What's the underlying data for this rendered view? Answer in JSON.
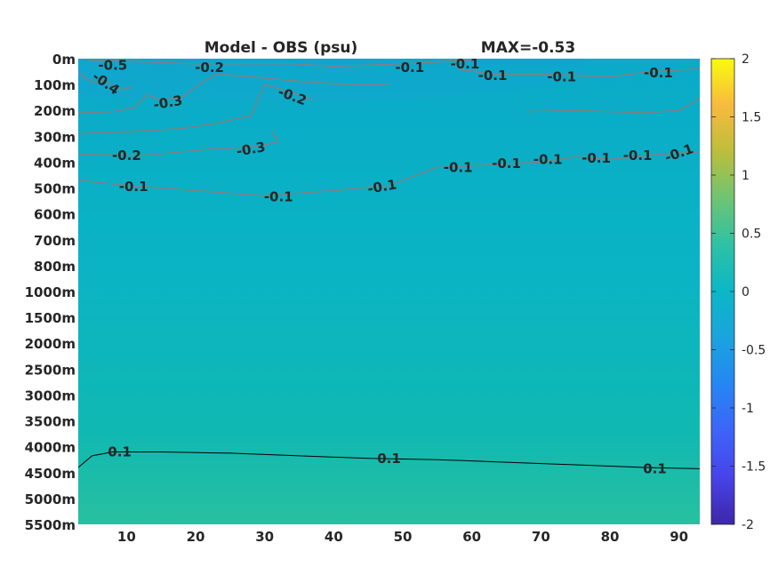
{
  "chart_data": {
    "type": "heatmap",
    "title_left": "Model - OBS (psu)",
    "title_right": "MAX=-0.53",
    "x": {
      "label": "",
      "range": [
        3,
        93
      ],
      "ticks": [
        10,
        20,
        30,
        40,
        50,
        60,
        70,
        80,
        90
      ],
      "tick_labels": [
        "10",
        "20",
        "30",
        "40",
        "50",
        "60",
        "70",
        "80",
        "90"
      ]
    },
    "y": {
      "label": "",
      "levels": [
        "0m",
        "100m",
        "200m",
        "300m",
        "400m",
        "500m",
        "600m",
        "700m",
        "800m",
        "1000m",
        "1500m",
        "2000m",
        "2500m",
        "3000m",
        "3500m",
        "4000m",
        "4500m",
        "5000m",
        "5500m"
      ],
      "reversed": true
    },
    "colorbar": {
      "colormap": "parula",
      "range": [
        -2,
        2
      ],
      "ticks": [
        2,
        1.5,
        1,
        0.5,
        0,
        -0.5,
        -1,
        -1.5,
        -2
      ],
      "tick_labels": [
        "2",
        "1.5",
        "1",
        "0.5",
        "0",
        "-0.5",
        "-1",
        "-1.5",
        "-2"
      ]
    },
    "field_description": "Salinity difference, mostly near 0 (range about -0.53 to 0.15); negative near surface at low x, slightly positive at depth",
    "contours": [
      {
        "level": -0.5,
        "label": "-0.5",
        "color": "#808080",
        "points": [
          [
            4.5,
            0.05
          ],
          [
            10,
            0.1
          ],
          [
            20,
            0.2
          ],
          [
            28,
            0.2
          ],
          [
            34,
            0.2
          ],
          [
            40,
            0.3
          ],
          [
            50,
            0.2
          ],
          [
            60,
            0.05
          ]
        ]
      },
      {
        "level": -0.4,
        "label": "-0.4",
        "color": "#808080",
        "points": [
          [
            3,
            0.55
          ],
          [
            5,
            0.9
          ],
          [
            7,
            0.85
          ],
          [
            9,
            1.2
          ],
          [
            11,
            1.1
          ]
        ]
      },
      {
        "level": -0.3,
        "label": "-0.3",
        "color": "#808080",
        "points": [
          [
            3,
            2.1
          ],
          [
            8,
            2.05
          ],
          [
            11,
            1.9
          ],
          [
            13,
            1.4
          ],
          [
            15,
            1.6
          ],
          [
            18,
            1.5
          ],
          [
            21,
            0.9
          ],
          [
            23,
            0.6
          ],
          [
            28,
            0.7
          ],
          [
            32,
            0.8
          ],
          [
            36,
            0.9
          ],
          [
            42,
            1.0
          ],
          [
            48,
            1.0
          ]
        ]
      },
      {
        "level": -0.2,
        "label": "-0.2",
        "color": "#808080",
        "points": [
          [
            3,
            2.9
          ],
          [
            12,
            2.8
          ],
          [
            18,
            2.7
          ],
          [
            23,
            2.5
          ],
          [
            28,
            2.2
          ],
          [
            29,
            1.6
          ],
          [
            30,
            1.0
          ],
          [
            34,
            1.3
          ],
          [
            37,
            1.6
          ]
        ]
      },
      {
        "level": -0.2,
        "label": "-0.2",
        "color": "#808080",
        "points": [
          [
            3,
            3.7
          ],
          [
            12,
            3.75
          ],
          [
            22,
            3.5
          ],
          [
            29,
            3.4
          ],
          [
            32,
            3.2
          ],
          [
            31,
            2.8
          ]
        ]
      },
      {
        "level": -0.1,
        "label": "-0.1",
        "color": "#808080",
        "points": [
          [
            3,
            4.7
          ],
          [
            10,
            4.9
          ],
          [
            20,
            5.1
          ],
          [
            30,
            5.3
          ],
          [
            40,
            5.1
          ],
          [
            48,
            4.9
          ],
          [
            55,
            4.2
          ],
          [
            63,
            4.1
          ],
          [
            70,
            4.0
          ],
          [
            75,
            3.8
          ],
          [
            80,
            3.9
          ],
          [
            87,
            3.7
          ],
          [
            93,
            3.6
          ]
        ]
      },
      {
        "level": -0.1,
        "label": "-0.1",
        "color": "#808080",
        "points": [
          [
            58,
            0.4
          ],
          [
            63,
            0.6
          ],
          [
            70,
            0.6
          ],
          [
            80,
            0.7
          ],
          [
            86,
            0.5
          ],
          [
            93,
            0.4
          ]
        ]
      },
      {
        "level": -0.1,
        "label": "-0.1",
        "color": "#808080",
        "points": [
          [
            68,
            2.05
          ],
          [
            75,
            2.0
          ],
          [
            85,
            2.1
          ],
          [
            90,
            2.0
          ],
          [
            92,
            1.7
          ],
          [
            93,
            1.5
          ]
        ]
      },
      {
        "level": 0.1,
        "label": "0.1",
        "color": "#000000",
        "points": [
          [
            3,
            15.8
          ],
          [
            5,
            15.35
          ],
          [
            8,
            15.2
          ],
          [
            15,
            15.2
          ],
          [
            25,
            15.25
          ],
          [
            35,
            15.35
          ],
          [
            45,
            15.45
          ],
          [
            55,
            15.5
          ],
          [
            65,
            15.6
          ],
          [
            75,
            15.7
          ],
          [
            85,
            15.8
          ],
          [
            93,
            15.85
          ]
        ]
      }
    ],
    "contour_labels": [
      {
        "text": "-0.5",
        "x": 8,
        "y": 0.25,
        "color": "#808080",
        "rot": 0
      },
      {
        "text": "-0.2",
        "x": 22,
        "y": 0.35,
        "color": "#808080",
        "rot": 0
      },
      {
        "text": "-0.1",
        "x": 51,
        "y": 0.35,
        "color": "#808080",
        "rot": 0
      },
      {
        "text": "-0.1",
        "x": 59,
        "y": 0.2,
        "color": "#808080",
        "rot": 0
      },
      {
        "text": "-0.1",
        "x": 63,
        "y": 0.65,
        "color": "#808080",
        "rot": 0
      },
      {
        "text": "-0.1",
        "x": 73,
        "y": 0.7,
        "color": "#808080",
        "rot": 0
      },
      {
        "text": "-0.1",
        "x": 87,
        "y": 0.55,
        "color": "#808080",
        "rot": 0
      },
      {
        "text": "-0.4",
        "x": 7,
        "y": 0.95,
        "color": "#808080",
        "rot": 35
      },
      {
        "text": "-0.3",
        "x": 16,
        "y": 1.7,
        "color": "#808080",
        "rot": -10
      },
      {
        "text": "-0.2",
        "x": 34,
        "y": 1.45,
        "color": "#808080",
        "rot": 20
      },
      {
        "text": "-0.3",
        "x": 28,
        "y": 3.5,
        "color": "#808080",
        "rot": -10
      },
      {
        "text": "-0.2",
        "x": 10,
        "y": 3.75,
        "color": "#808080",
        "rot": 0
      },
      {
        "text": "-0.1",
        "x": 11,
        "y": 4.95,
        "color": "#808080",
        "rot": 0
      },
      {
        "text": "-0.1",
        "x": 32,
        "y": 5.35,
        "color": "#808080",
        "rot": 0
      },
      {
        "text": "-0.1",
        "x": 47,
        "y": 4.95,
        "color": "#808080",
        "rot": -10
      },
      {
        "text": "-0.1",
        "x": 58,
        "y": 4.2,
        "color": "#808080",
        "rot": 0
      },
      {
        "text": "-0.1",
        "x": 65,
        "y": 4.05,
        "color": "#808080",
        "rot": 0
      },
      {
        "text": "-0.1",
        "x": 71,
        "y": 3.9,
        "color": "#808080",
        "rot": 0
      },
      {
        "text": "-0.1",
        "x": 78,
        "y": 3.85,
        "color": "#808080",
        "rot": 0
      },
      {
        "text": "-0.1",
        "x": 84,
        "y": 3.75,
        "color": "#808080",
        "rot": 0
      },
      {
        "text": "-0.1",
        "x": 90,
        "y": 3.65,
        "color": "#808080",
        "rot": -20
      },
      {
        "text": "0.1",
        "x": 9,
        "y": 15.2,
        "color": "#000000",
        "rot": 0
      },
      {
        "text": "0.1",
        "x": 48,
        "y": 15.45,
        "color": "#000000",
        "rot": 0
      },
      {
        "text": "0.1",
        "x": 86.5,
        "y": 15.85,
        "color": "#000000",
        "rot": 0
      }
    ]
  }
}
